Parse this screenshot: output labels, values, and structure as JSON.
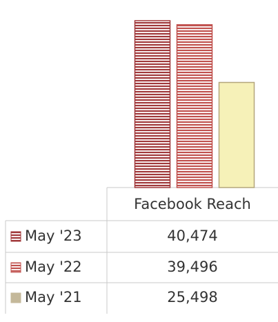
{
  "chart_data": {
    "type": "bar",
    "categories": [
      "Facebook Reach"
    ],
    "series": [
      {
        "name": "May '23",
        "color": "#a0383a",
        "values": [
          40474
        ],
        "value_labels": [
          "40,474"
        ]
      },
      {
        "name": "May '22",
        "color": "#c0504d",
        "values": [
          39496
        ],
        "value_labels": [
          "39,496"
        ]
      },
      {
        "name": "May '21",
        "color": "#c4b89a",
        "values": [
          25498
        ],
        "value_labels": [
          "25,498"
        ]
      }
    ]
  }
}
